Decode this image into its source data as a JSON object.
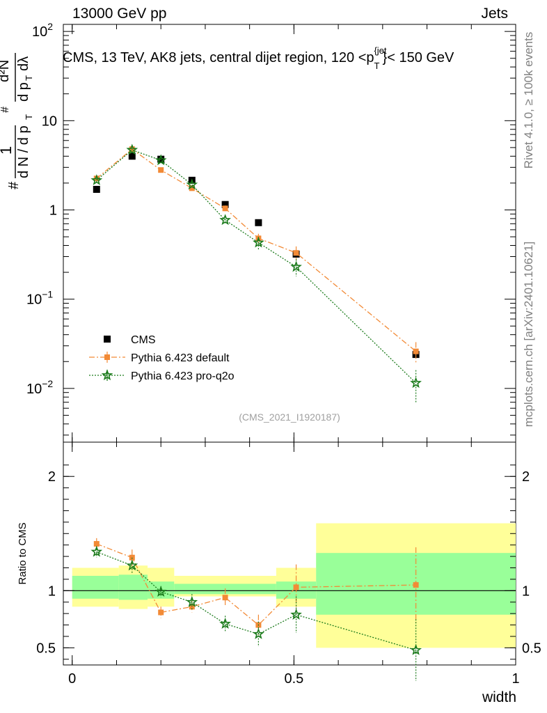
{
  "header": {
    "left": "13000 GeV pp",
    "right": "Jets"
  },
  "side_labels": {
    "rivet": "Rivet 4.1.0, ≥ 100k events",
    "mcplots": "mcplots.cern.ch [arXiv:2401.10621]"
  },
  "chart_data": [
    {
      "type": "scatter",
      "panel": "main",
      "title": "CMS, 13 TeV, AK8 jets, central dijet region, 120 < p_T^{jet} < 150 GeV",
      "title_parts": {
        "prefix": "CMS, 13 TeV, AK8 jets, central dijet region, 120 <p",
        "sup": "{jet",
        "sub": "T",
        "suffix": "}< 150 GeV"
      },
      "analysis_id": "(CMS_2021_I1920187)",
      "yscale": "log",
      "ylim": [
        0.0025,
        120
      ],
      "xlim": [
        -0.02,
        1.0
      ],
      "ylabel_parts": {
        "num_hash": "#",
        "one": "1",
        "den": "d N / d p",
        "den_sub": "T",
        "mid_hash": "#",
        "d2n": "d²N",
        "dpt": "d p",
        "dpt_sub": "T",
        "dlambda": "dλ"
      },
      "yticks": [
        {
          "value": 0.01,
          "base": "10",
          "exp": "−2"
        },
        {
          "value": 0.1,
          "base": "10",
          "exp": "−1"
        },
        {
          "value": 1,
          "base": "1",
          "exp": ""
        },
        {
          "value": 10,
          "base": "10",
          "exp": ""
        },
        {
          "value": 100,
          "base": "10",
          "exp": "2"
        }
      ],
      "legend": {
        "position": "lower-left",
        "entries": [
          "CMS",
          "Pythia 6.423 default",
          "Pythia 6.423 pro-q2o"
        ]
      },
      "series": [
        {
          "name": "CMS",
          "color": "#000000",
          "marker": "square",
          "x": [
            0.055,
            0.135,
            0.2,
            0.27,
            0.345,
            0.42,
            0.505,
            0.775
          ],
          "y": [
            1.7,
            4.0,
            3.7,
            2.15,
            1.15,
            0.72,
            0.32,
            0.024
          ]
        },
        {
          "name": "Pythia 6.423 default",
          "color": "#f28a36",
          "marker": "square",
          "line": "dashdot",
          "x": [
            0.055,
            0.135,
            0.2,
            0.27,
            0.345,
            0.42,
            0.505,
            0.775
          ],
          "y": [
            2.25,
            4.8,
            2.8,
            1.75,
            1.04,
            0.48,
            0.33,
            0.026
          ],
          "err": [
            0.12,
            0.2,
            0.12,
            0.1,
            0.08,
            0.06,
            0.06,
            0.007
          ]
        },
        {
          "name": "Pythia 6.423 pro-q2o",
          "color": "#1a7a1a",
          "marker": "star",
          "line": "dotted",
          "x": [
            0.055,
            0.135,
            0.2,
            0.27,
            0.345,
            0.42,
            0.505,
            0.775
          ],
          "y": [
            2.15,
            4.7,
            3.6,
            1.92,
            0.77,
            0.43,
            0.23,
            0.0115
          ],
          "err": [
            0.12,
            0.2,
            0.15,
            0.12,
            0.08,
            0.07,
            0.05,
            0.0045
          ]
        }
      ]
    },
    {
      "type": "scatter",
      "panel": "ratio",
      "xlabel": "width",
      "ylabel": "Ratio to CMS",
      "yscale": "linear",
      "ylim": [
        0.35,
        2.3
      ],
      "xlim": [
        -0.02,
        1.0
      ],
      "xticks": [
        {
          "value": 0,
          "label": "0"
        },
        {
          "value": 0.5,
          "label": "0.5"
        },
        {
          "value": 1,
          "label": "1"
        }
      ],
      "yticks": [
        {
          "value": 0.5,
          "label": "0.5"
        },
        {
          "value": 1,
          "label": "1"
        },
        {
          "value": 2,
          "label": "2"
        }
      ],
      "uncertainty_bands": [
        {
          "x0": 0.0,
          "x1": 0.105,
          "inner": [
            0.93,
            1.13
          ],
          "outer": [
            0.86,
            1.2
          ]
        },
        {
          "x0": 0.105,
          "x1": 0.17,
          "inner": [
            0.92,
            1.14
          ],
          "outer": [
            0.84,
            1.22
          ]
        },
        {
          "x0": 0.17,
          "x1": 0.23,
          "inner": [
            0.93,
            1.08
          ],
          "outer": [
            0.86,
            1.2
          ]
        },
        {
          "x0": 0.23,
          "x1": 0.46,
          "inner": [
            0.97,
            1.06
          ],
          "outer": [
            0.95,
            1.13
          ]
        },
        {
          "x0": 0.46,
          "x1": 0.55,
          "inner": [
            0.93,
            1.08
          ],
          "outer": [
            0.86,
            1.2
          ]
        },
        {
          "x0": 0.55,
          "x1": 1.0,
          "inner": [
            0.79,
            1.33
          ],
          "outer": [
            0.5,
            1.59
          ]
        }
      ],
      "series": [
        {
          "name": "Pythia 6.423 default",
          "color": "#f28a36",
          "marker": "square",
          "line": "dashdot",
          "x": [
            0.055,
            0.135,
            0.2,
            0.27,
            0.345,
            0.42,
            0.505,
            0.775
          ],
          "y": [
            1.41,
            1.29,
            0.81,
            0.86,
            0.94,
            0.7,
            1.03,
            1.05
          ],
          "err": [
            0.05,
            0.07,
            0.05,
            0.05,
            0.08,
            0.09,
            0.2,
            0.33
          ]
        },
        {
          "name": "Pythia 6.423 pro-q2o",
          "color": "#1a7a1a",
          "marker": "star",
          "line": "dotted",
          "x": [
            0.055,
            0.135,
            0.2,
            0.27,
            0.345,
            0.42,
            0.505,
            0.775
          ],
          "y": [
            1.34,
            1.22,
            0.99,
            0.9,
            0.71,
            0.62,
            0.79,
            0.48
          ],
          "err": [
            0.05,
            0.07,
            0.05,
            0.07,
            0.07,
            0.11,
            0.16,
            0.27
          ]
        }
      ]
    }
  ]
}
